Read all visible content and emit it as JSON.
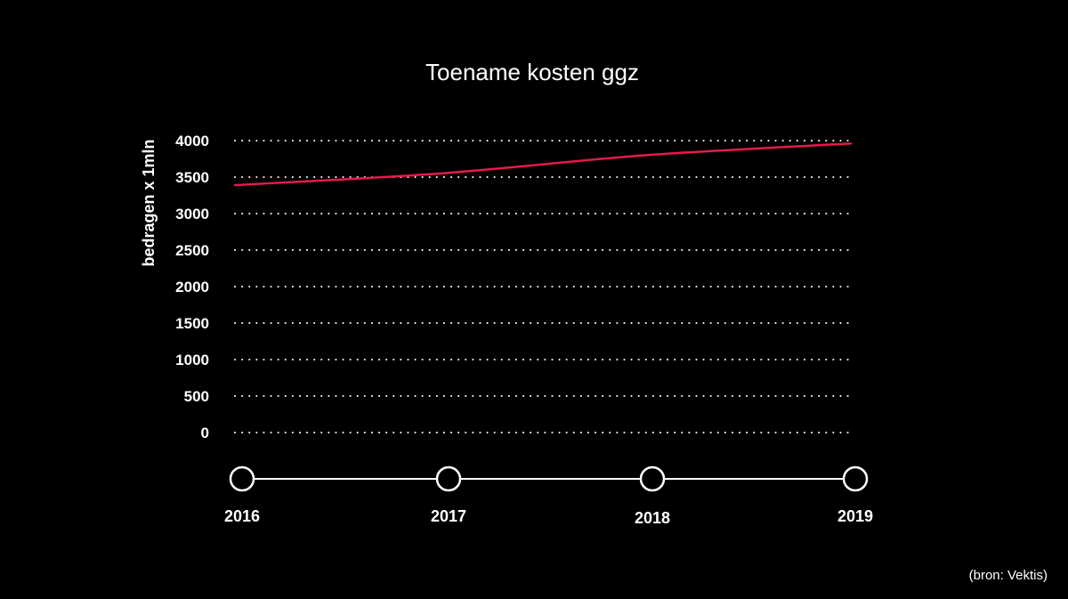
{
  "chart_data": {
    "type": "line",
    "title": "Toename kosten ggz",
    "ylabel": "bedragen x 1mln",
    "xlabel": "",
    "x": [
      "2016",
      "2017",
      "2018",
      "2019"
    ],
    "series": [
      {
        "values": [
          3390,
          3550,
          3800,
          3960
        ]
      }
    ],
    "ylim": [
      0,
      4000
    ],
    "yticks": [
      0,
      500,
      1000,
      1500,
      2000,
      2500,
      3000,
      3500,
      4000
    ],
    "grid": true,
    "source": "(bron: Vektis)",
    "colors": {
      "background": "#000000",
      "line": "#e8194b",
      "text": "#ffffff",
      "grid": "#ffffff"
    }
  }
}
